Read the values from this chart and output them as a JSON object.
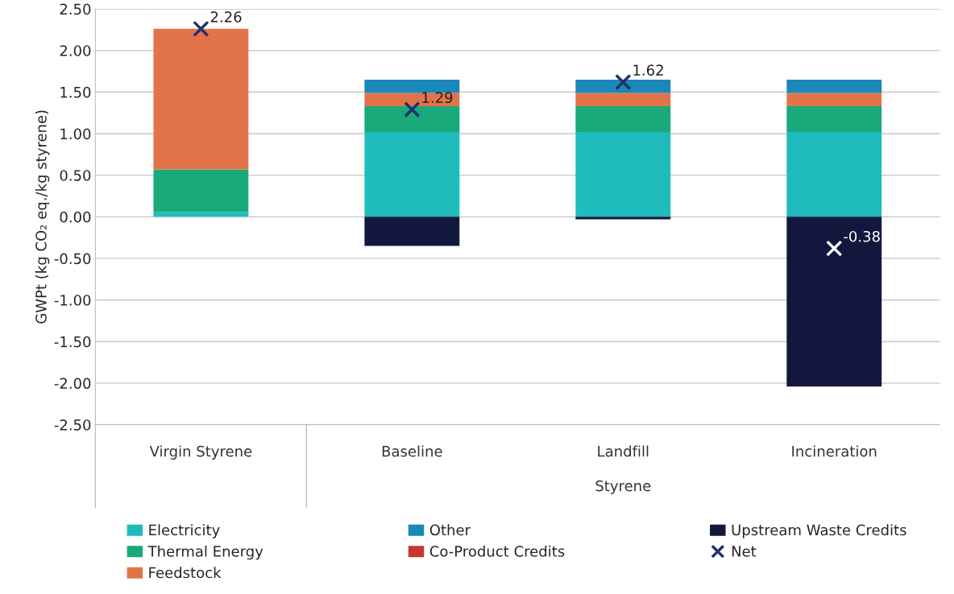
{
  "chart_data": {
    "type": "bar",
    "stacked": true,
    "ylabel": "GWPt (kg CO₂ eq./kg styrene)",
    "categories": [
      "Virgin Styrene",
      "Baseline",
      "Landfill",
      "Incineration"
    ],
    "annotations": [
      "Styrene"
    ],
    "series": [
      {
        "name": "Electricity",
        "color": "#1fbcbe",
        "values": [
          0.06,
          1.02,
          1.02,
          1.02
        ]
      },
      {
        "name": "Thermal Energy",
        "color": "#1aa97b",
        "values": [
          0.51,
          0.31,
          0.31,
          0.31
        ]
      },
      {
        "name": "Feedstock",
        "color": "#e3744a",
        "values": [
          1.69,
          0.16,
          0.16,
          0.16
        ]
      },
      {
        "name": "Other",
        "color": "#1a88bb",
        "values": [
          0,
          0.16,
          0.16,
          0.16
        ]
      },
      {
        "name": "Co-Product Credits",
        "color": "#c8382a",
        "values": [
          0,
          0,
          0,
          0
        ]
      },
      {
        "name": "Upstream Waste Credits",
        "color": "#12183d",
        "values": [
          0,
          -0.35,
          -0.03,
          -2.04
        ]
      },
      {
        "name": "Net",
        "type": "scatter",
        "marker": "cross",
        "colors": [
          "#23306a",
          "#23306a",
          "#23306a",
          "#ffffff"
        ],
        "values": [
          2.26,
          1.29,
          1.62,
          -0.38
        ],
        "value_labels": [
          "2.26",
          "1.29",
          "1.62",
          "-0.38"
        ]
      }
    ],
    "ylim": [
      -2.5,
      2.5
    ],
    "yticks": [
      "-2.50",
      "-2.00",
      "-1.50",
      "-1.00",
      "-0.50",
      "0.00",
      "0.50",
      "1.00",
      "1.50",
      "2.00",
      "2.50"
    ],
    "grid": "y",
    "legend": "bottom"
  }
}
